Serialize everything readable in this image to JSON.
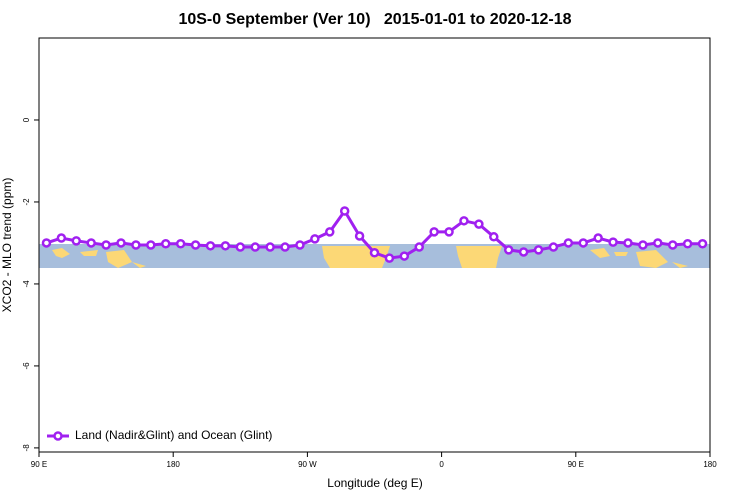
{
  "chart_data": {
    "type": "line",
    "title": "10S-0 September (Ver 10)   2015-01-01 to 2020-12-18",
    "x_label": "Longitude (deg E)",
    "y_label": "XCO2 - MLO trend (ppm)",
    "x": [
      95,
      105,
      115,
      125,
      135,
      145,
      155,
      165,
      175,
      185,
      195,
      205,
      215,
      225,
      235,
      245,
      255,
      265,
      275,
      285,
      295,
      305,
      315,
      325,
      335,
      345,
      355,
      365,
      375,
      385,
      395,
      405,
      415,
      425,
      435,
      445,
      455,
      465,
      475,
      485,
      495,
      505,
      515,
      525,
      535
    ],
    "series": [
      {
        "name": "Land (Nadir&Glint) and Ocean (Glint)",
        "color": "#a020f0",
        "values": [
          -3.0,
          -2.88,
          -2.95,
          -3.0,
          -3.05,
          -3.0,
          -3.05,
          -3.05,
          -3.02,
          -3.02,
          -3.05,
          -3.07,
          -3.07,
          -3.1,
          -3.1,
          -3.1,
          -3.1,
          -3.05,
          -2.9,
          -2.73,
          -2.22,
          -2.83,
          -3.24,
          -3.37,
          -3.32,
          -3.1,
          -2.73,
          -2.73,
          -2.46,
          -2.54,
          -2.85,
          -3.17,
          -3.22,
          -3.17,
          -3.1,
          -3.0,
          -3.0,
          -2.88,
          -2.98,
          -3.0,
          -3.05,
          -3.0,
          -3.05,
          -3.02,
          -3.02
        ]
      }
    ],
    "xlim": [
      90,
      540
    ],
    "xticks": [
      {
        "value": 90,
        "label": "90 E"
      },
      180,
      {
        "value": 270,
        "label": "90 W"
      },
      {
        "value": 360,
        "label": "0"
      },
      {
        "value": 450,
        "label": "90 E"
      },
      {
        "value": 540,
        "label": "180"
      }
    ],
    "ylim": [
      -8.1,
      2
    ],
    "yticks": [
      0,
      -2,
      -4,
      -6,
      -8
    ],
    "legend": "bottom-left"
  }
}
